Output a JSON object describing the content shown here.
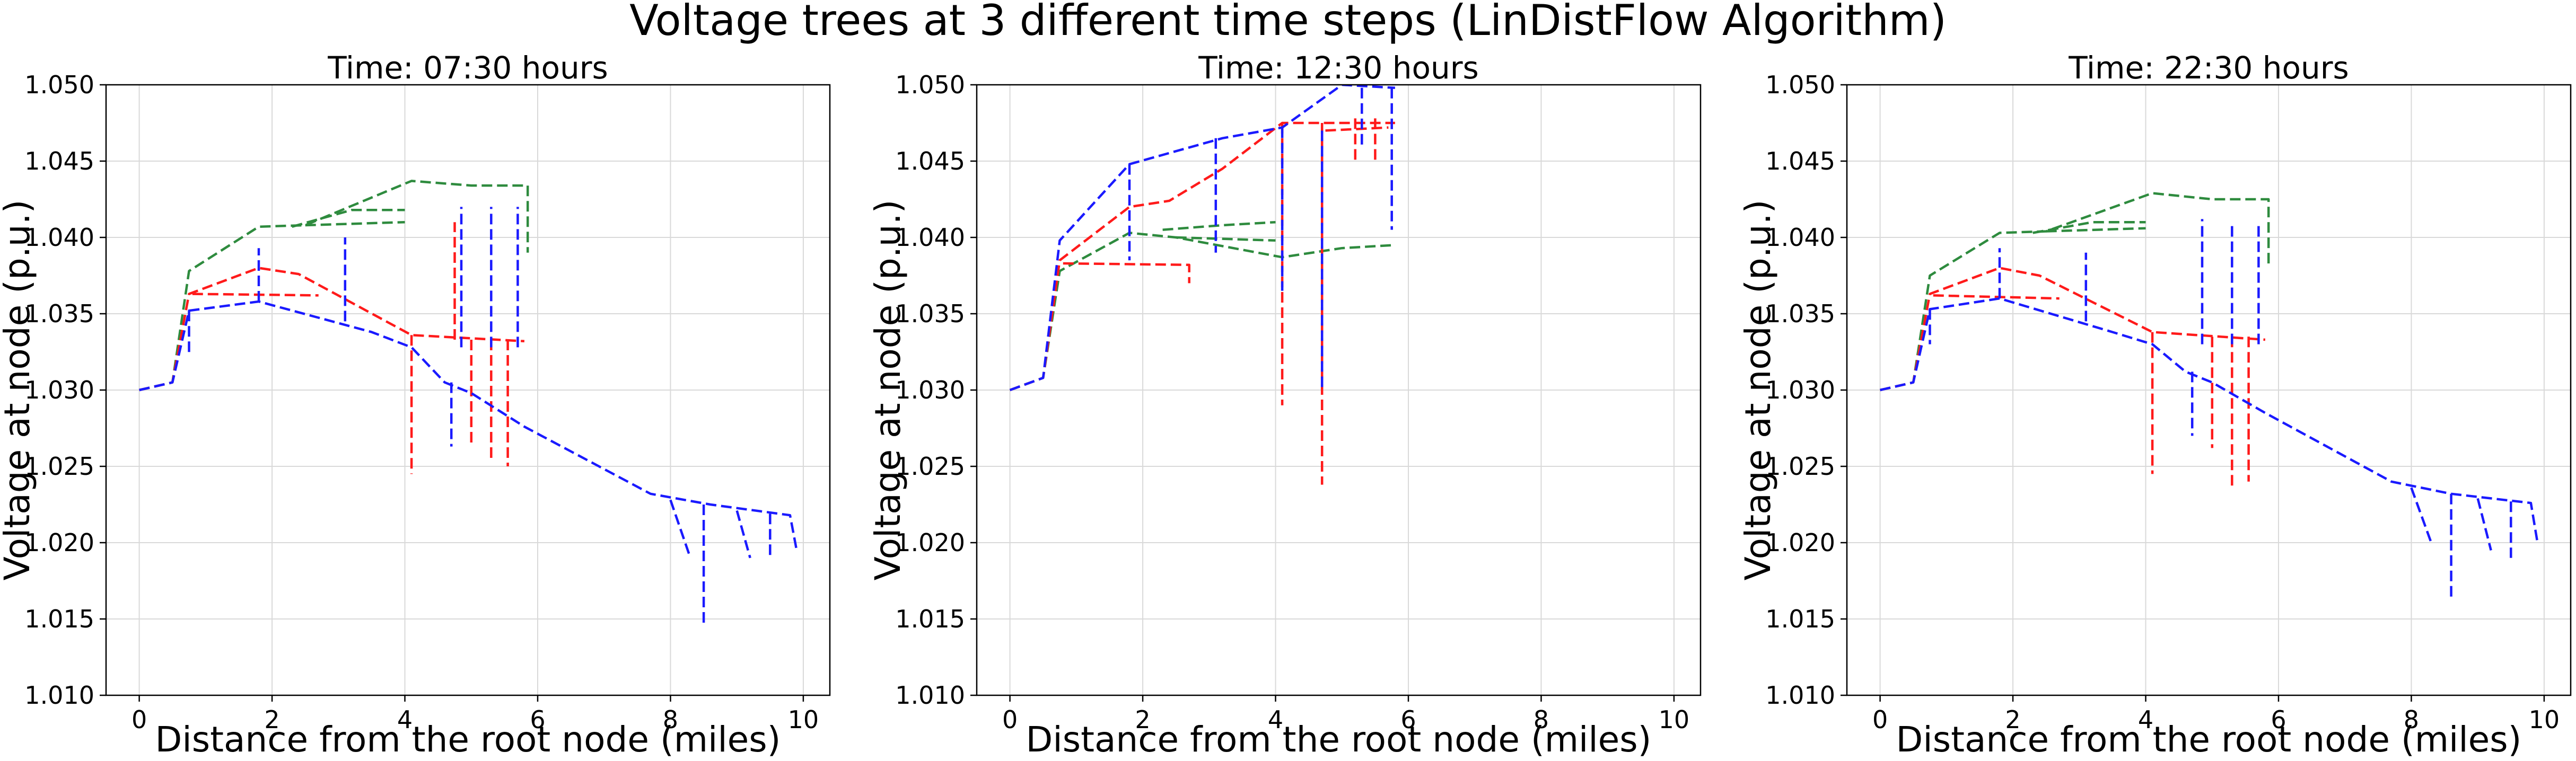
{
  "suptitle": "Voltage trees at 3 different time steps  (LinDistFlow Algorithm)",
  "colors": {
    "phase_a": "#2e8b3e",
    "phase_b": "#ff1a1a",
    "phase_c": "#1a1aff"
  },
  "chart_data": [
    {
      "type": "line",
      "title": "Time: 07:30 hours",
      "xlabel": "Distance from the root node (miles)",
      "ylabel": "Voltage at node (p.u.)",
      "xlim": [
        -0.5,
        10.4
      ],
      "ylim": [
        1.01,
        1.05
      ],
      "xticks": [
        "0",
        "2",
        "4",
        "6",
        "8",
        "10"
      ],
      "xtick_values": [
        0,
        2,
        4,
        6,
        8,
        10
      ],
      "yticks": [
        "1.010",
        "1.015",
        "1.020",
        "1.025",
        "1.030",
        "1.035",
        "1.040",
        "1.045",
        "1.050"
      ],
      "ytick_values": [
        1.01,
        1.015,
        1.02,
        1.025,
        1.03,
        1.035,
        1.04,
        1.045,
        1.05
      ],
      "grid": true,
      "series": [
        {
          "color": "phase_a",
          "branches": [
            [
              [
                0,
                1.03
              ],
              [
                0.5,
                1.0305
              ],
              [
                0.75,
                1.0378
              ],
              [
                1.8,
                1.0407
              ],
              [
                2.5,
                1.0408
              ],
              [
                4.1,
                1.0437
              ],
              [
                5.0,
                1.0434
              ],
              [
                5.85,
                1.0434
              ],
              [
                5.85,
                1.039
              ]
            ],
            [
              [
                2.3,
                1.0407
              ],
              [
                3.2,
                1.0418
              ],
              [
                4.0,
                1.0418
              ]
            ],
            [
              [
                2.5,
                1.0408
              ],
              [
                4.0,
                1.041
              ]
            ]
          ]
        },
        {
          "color": "phase_b",
          "branches": [
            [
              [
                0,
                1.03
              ],
              [
                0.5,
                1.0305
              ],
              [
                0.75,
                1.0363
              ],
              [
                1.8,
                1.038
              ],
              [
                2.4,
                1.0376
              ],
              [
                4.1,
                1.0336
              ],
              [
                5.8,
                1.0332
              ]
            ],
            [
              [
                0.8,
                1.0363
              ],
              [
                2.7,
                1.0362
              ]
            ],
            [
              [
                4.1,
                1.0336
              ],
              [
                4.1,
                1.0245
              ]
            ],
            [
              [
                5.0,
                1.0333
              ],
              [
                5.0,
                1.0265
              ]
            ],
            [
              [
                5.3,
                1.0333
              ],
              [
                5.3,
                1.0255
              ]
            ],
            [
              [
                5.55,
                1.0333
              ],
              [
                5.55,
                1.025
              ]
            ],
            [
              [
                4.75,
                1.0333
              ],
              [
                4.75,
                1.041
              ]
            ]
          ]
        },
        {
          "color": "phase_c",
          "branches": [
            [
              [
                0,
                1.03
              ],
              [
                0.5,
                1.0305
              ],
              [
                0.75,
                1.0352
              ],
              [
                1.8,
                1.0358
              ],
              [
                3.5,
                1.0338
              ],
              [
                4.1,
                1.0328
              ],
              [
                4.6,
                1.0305
              ],
              [
                5.0,
                1.0298
              ],
              [
                5.8,
                1.0276
              ],
              [
                7.7,
                1.0232
              ],
              [
                8.6,
                1.0225
              ],
              [
                9.8,
                1.0218
              ],
              [
                9.9,
                1.0195
              ]
            ],
            [
              [
                0.75,
                1.0352
              ],
              [
                0.75,
                1.0322
              ]
            ],
            [
              [
                1.8,
                1.0358
              ],
              [
                1.8,
                1.0393
              ]
            ],
            [
              [
                3.1,
                1.0345
              ],
              [
                3.1,
                1.04
              ]
            ],
            [
              [
                4.85,
                1.0328
              ],
              [
                4.85,
                1.042
              ]
            ],
            [
              [
                5.3,
                1.0328
              ],
              [
                5.3,
                1.042
              ]
            ],
            [
              [
                5.7,
                1.0328
              ],
              [
                5.7,
                1.042
              ]
            ],
            [
              [
                4.7,
                1.0305
              ],
              [
                4.7,
                1.0263
              ]
            ],
            [
              [
                8.0,
                1.0228
              ],
              [
                8.3,
                1.019
              ]
            ],
            [
              [
                8.5,
                1.0225
              ],
              [
                8.5,
                1.0145
              ]
            ],
            [
              [
                9.0,
                1.0221
              ],
              [
                9.2,
                1.019
              ]
            ],
            [
              [
                9.5,
                1.0219
              ],
              [
                9.5,
                1.019
              ]
            ]
          ]
        }
      ]
    },
    {
      "type": "line",
      "title": "Time: 12:30 hours",
      "xlabel": "Distance from the root node (miles)",
      "ylabel": "Voltage at node (p.u.)",
      "xlim": [
        -0.5,
        10.4
      ],
      "ylim": [
        1.01,
        1.05
      ],
      "xticks": [
        "0",
        "2",
        "4",
        "6",
        "8",
        "10"
      ],
      "xtick_values": [
        0,
        2,
        4,
        6,
        8,
        10
      ],
      "yticks": [
        "1.010",
        "1.015",
        "1.020",
        "1.025",
        "1.030",
        "1.035",
        "1.040",
        "1.045",
        "1.050"
      ],
      "ytick_values": [
        1.01,
        1.015,
        1.02,
        1.025,
        1.03,
        1.035,
        1.04,
        1.045,
        1.05
      ],
      "grid": true,
      "series": [
        {
          "color": "phase_a",
          "branches": [
            [
              [
                0,
                1.03
              ],
              [
                0.5,
                1.0308
              ],
              [
                0.75,
                1.0378
              ],
              [
                1.8,
                1.0403
              ],
              [
                2.5,
                1.04
              ],
              [
                4.1,
                1.0387
              ],
              [
                5.0,
                1.0393
              ],
              [
                5.8,
                1.0395
              ]
            ],
            [
              [
                2.3,
                1.0405
              ],
              [
                3.2,
                1.0408
              ],
              [
                4.0,
                1.041
              ]
            ],
            [
              [
                2.5,
                1.04
              ],
              [
                4.0,
                1.0398
              ]
            ]
          ]
        },
        {
          "color": "phase_b",
          "branches": [
            [
              [
                0,
                1.03
              ],
              [
                0.5,
                1.0308
              ],
              [
                0.75,
                1.0385
              ],
              [
                1.8,
                1.042
              ],
              [
                2.4,
                1.0424
              ],
              [
                3.2,
                1.0445
              ],
              [
                4.1,
                1.0475
              ],
              [
                5.0,
                1.0475
              ],
              [
                5.8,
                1.0475
              ]
            ],
            [
              [
                0.8,
                1.0383
              ],
              [
                2.7,
                1.0382
              ],
              [
                2.7,
                1.037
              ]
            ],
            [
              [
                4.1,
                1.0475
              ],
              [
                4.1,
                1.029
              ]
            ],
            [
              [
                4.7,
                1.0475
              ],
              [
                4.7,
                1.0238
              ]
            ],
            [
              [
                5.2,
                1.0478
              ],
              [
                5.2,
                1.045
              ]
            ],
            [
              [
                5.5,
                1.0478
              ],
              [
                5.5,
                1.0448
              ]
            ],
            [
              [
                4.75,
                1.047
              ],
              [
                5.7,
                1.0472
              ]
            ]
          ]
        },
        {
          "color": "phase_c",
          "branches": [
            [
              [
                0,
                1.03
              ],
              [
                0.5,
                1.0308
              ],
              [
                0.75,
                1.0398
              ],
              [
                1.8,
                1.0448
              ],
              [
                3.2,
                1.0465
              ],
              [
                4.1,
                1.0472
              ],
              [
                5.0,
                1.05
              ],
              [
                5.8,
                1.0498
              ]
            ],
            [
              [
                1.8,
                1.0448
              ],
              [
                1.8,
                1.0385
              ]
            ],
            [
              [
                3.1,
                1.0465
              ],
              [
                3.1,
                1.039
              ]
            ],
            [
              [
                4.1,
                1.0472
              ],
              [
                4.1,
                1.0365
              ]
            ],
            [
              [
                4.7,
                1.047
              ],
              [
                4.7,
                1.03
              ]
            ],
            [
              [
                5.3,
                1.0498
              ],
              [
                5.3,
                1.046
              ]
            ],
            [
              [
                5.75,
                1.0498
              ],
              [
                5.75,
                1.0405
              ]
            ]
          ]
        }
      ]
    },
    {
      "type": "line",
      "title": "Time: 22:30 hours",
      "xlabel": "Distance from the root node (miles)",
      "ylabel": "Voltage at node (p.u.)",
      "xlim": [
        -0.5,
        10.4
      ],
      "ylim": [
        1.01,
        1.05
      ],
      "xticks": [
        "0",
        "2",
        "4",
        "6",
        "8",
        "10"
      ],
      "xtick_values": [
        0,
        2,
        4,
        6,
        8,
        10
      ],
      "yticks": [
        "1.010",
        "1.015",
        "1.020",
        "1.025",
        "1.030",
        "1.035",
        "1.040",
        "1.045",
        "1.050"
      ],
      "ytick_values": [
        1.01,
        1.015,
        1.02,
        1.025,
        1.03,
        1.035,
        1.04,
        1.045,
        1.05
      ],
      "grid": true,
      "series": [
        {
          "color": "phase_a",
          "branches": [
            [
              [
                0,
                1.03
              ],
              [
                0.5,
                1.0305
              ],
              [
                0.75,
                1.0375
              ],
              [
                1.8,
                1.0403
              ],
              [
                2.5,
                1.0404
              ],
              [
                4.1,
                1.0429
              ],
              [
                5.0,
                1.0425
              ],
              [
                5.85,
                1.0425
              ],
              [
                5.85,
                1.038
              ]
            ],
            [
              [
                2.3,
                1.0403
              ],
              [
                3.2,
                1.041
              ],
              [
                4.0,
                1.041
              ]
            ],
            [
              [
                2.5,
                1.0404
              ],
              [
                4.0,
                1.0406
              ]
            ]
          ]
        },
        {
          "color": "phase_b",
          "branches": [
            [
              [
                0,
                1.03
              ],
              [
                0.5,
                1.0305
              ],
              [
                0.75,
                1.0363
              ],
              [
                1.8,
                1.038
              ],
              [
                2.4,
                1.0375
              ],
              [
                4.1,
                1.0338
              ],
              [
                5.8,
                1.0333
              ]
            ],
            [
              [
                0.8,
                1.0362
              ],
              [
                2.7,
                1.036
              ]
            ],
            [
              [
                4.1,
                1.0338
              ],
              [
                4.1,
                1.0245
              ]
            ],
            [
              [
                5.0,
                1.0335
              ],
              [
                5.0,
                1.0262
              ]
            ],
            [
              [
                5.3,
                1.0335
              ],
              [
                5.3,
                1.0235
              ]
            ],
            [
              [
                5.55,
                1.0335
              ],
              [
                5.55,
                1.024
              ]
            ]
          ]
        },
        {
          "color": "phase_c",
          "branches": [
            [
              [
                0,
                1.03
              ],
              [
                0.5,
                1.0305
              ],
              [
                0.75,
                1.0353
              ],
              [
                1.8,
                1.036
              ],
              [
                3.5,
                1.0338
              ],
              [
                4.1,
                1.033
              ],
              [
                4.6,
                1.0312
              ],
              [
                5.0,
                1.0305
              ],
              [
                5.8,
                1.0285
              ],
              [
                7.7,
                1.024
              ],
              [
                8.6,
                1.0232
              ],
              [
                9.8,
                1.0226
              ],
              [
                9.9,
                1.02
              ]
            ],
            [
              [
                0.75,
                1.0353
              ],
              [
                0.75,
                1.033
              ]
            ],
            [
              [
                1.8,
                1.036
              ],
              [
                1.8,
                1.0393
              ]
            ],
            [
              [
                3.1,
                1.0345
              ],
              [
                3.1,
                1.039
              ]
            ],
            [
              [
                4.85,
                1.033
              ],
              [
                4.85,
                1.0412
              ]
            ],
            [
              [
                5.3,
                1.033
              ],
              [
                5.3,
                1.041
              ]
            ],
            [
              [
                5.7,
                1.033
              ],
              [
                5.7,
                1.041
              ]
            ],
            [
              [
                4.7,
                1.0312
              ],
              [
                4.7,
                1.027
              ]
            ],
            [
              [
                8.0,
                1.0236
              ],
              [
                8.3,
                1.02
              ]
            ],
            [
              [
                8.6,
                1.0232
              ],
              [
                8.6,
                1.0162
              ]
            ],
            [
              [
                9.0,
                1.0229
              ],
              [
                9.2,
                1.0195
              ]
            ],
            [
              [
                9.5,
                1.0227
              ],
              [
                9.5,
                1.019
              ]
            ]
          ]
        }
      ]
    }
  ]
}
